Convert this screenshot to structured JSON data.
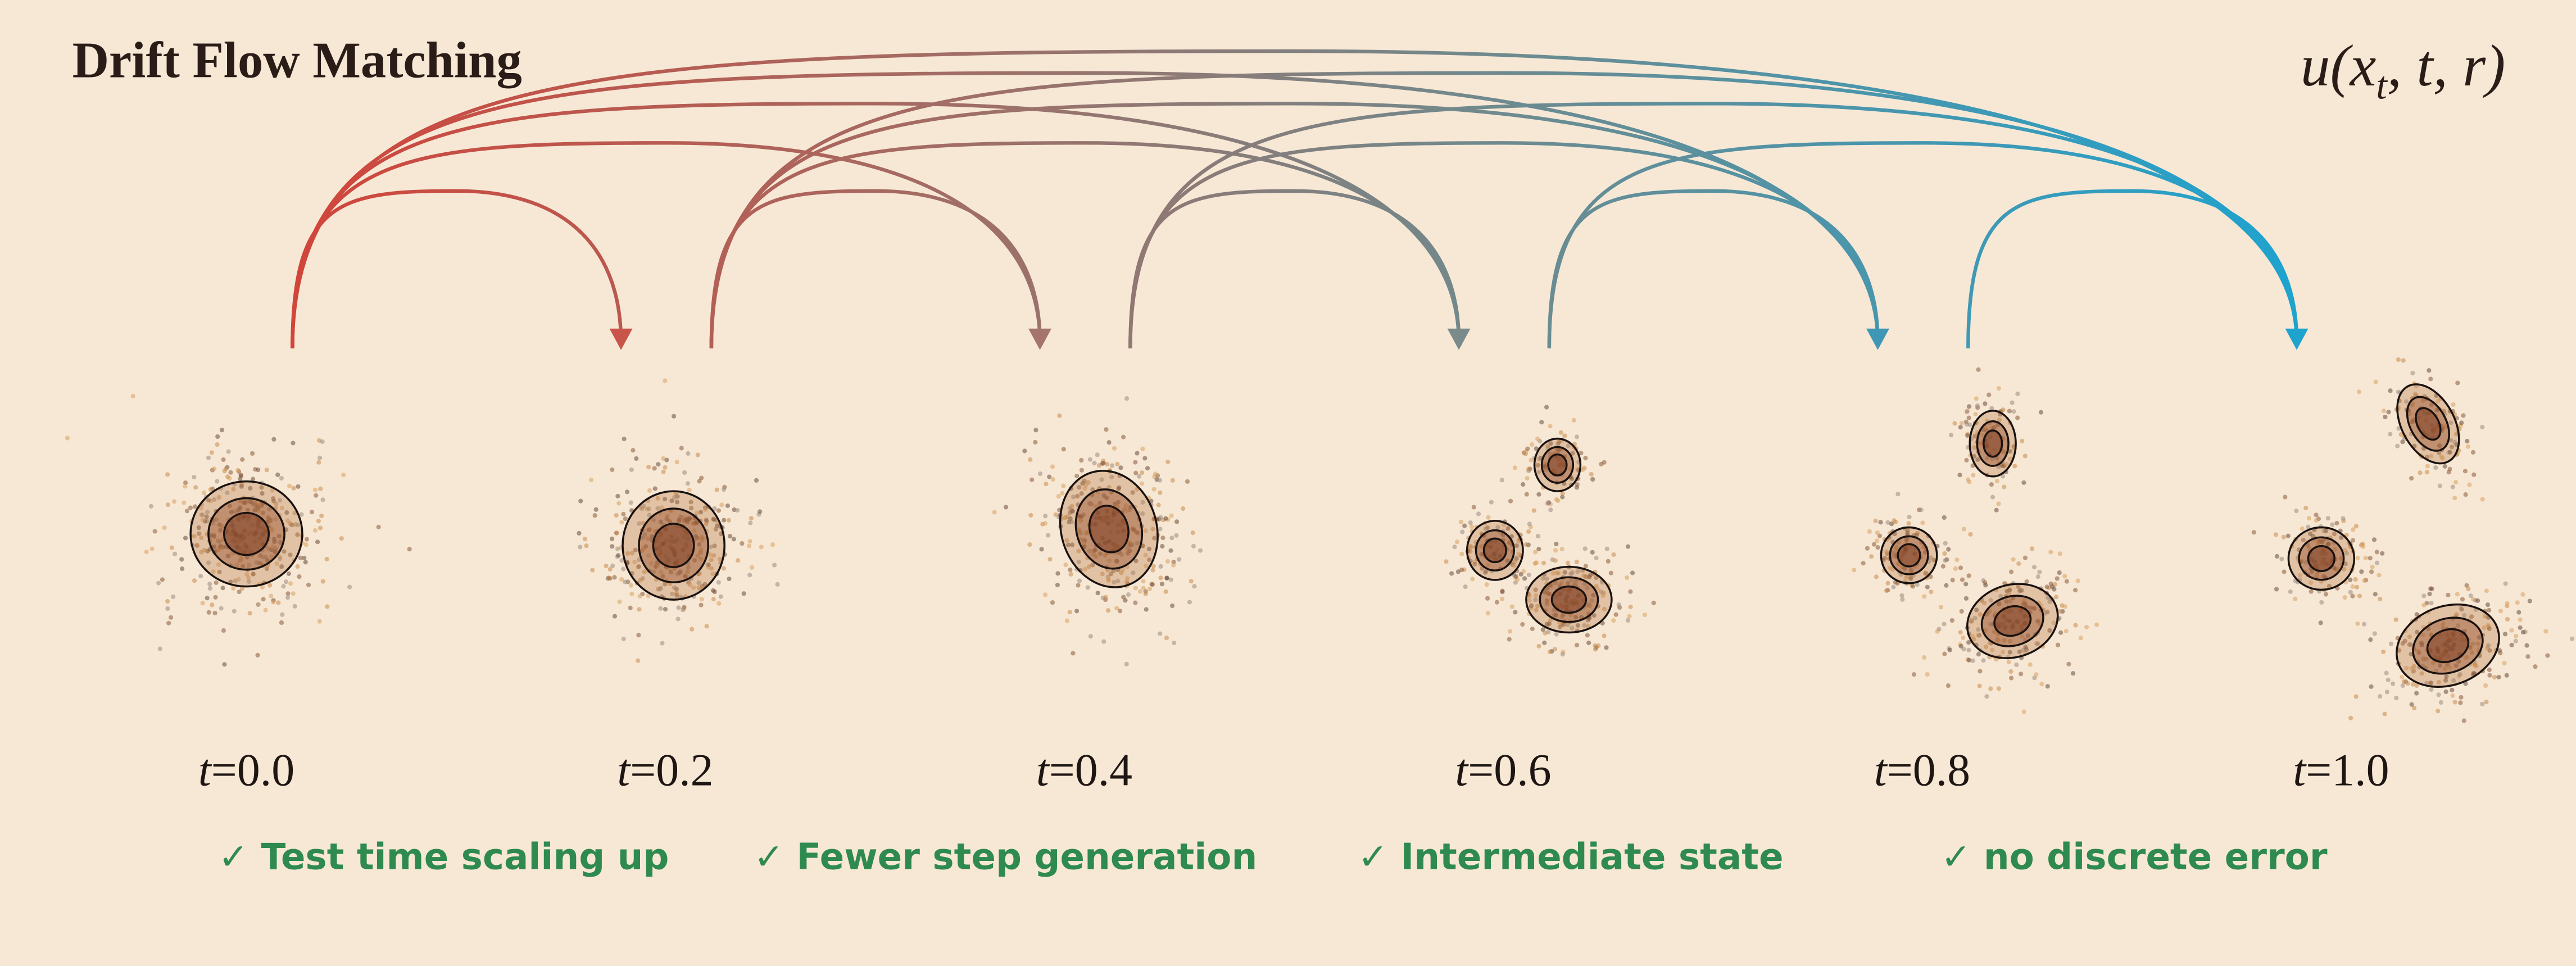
{
  "title": "Drift Flow Matching",
  "formula": {
    "head": "u(x",
    "sub": "t",
    "tail": ", t, r)"
  },
  "steps": [
    {
      "var": "t",
      "op": "=",
      "value": "0.0"
    },
    {
      "var": "t",
      "op": "=",
      "value": "0.2"
    },
    {
      "var": "t",
      "op": "=",
      "value": "0.4"
    },
    {
      "var": "t",
      "op": "=",
      "value": "0.6"
    },
    {
      "var": "t",
      "op": "=",
      "value": "0.8"
    },
    {
      "var": "t",
      "op": "=",
      "value": "1.0"
    }
  ],
  "features": [
    "✓ Test time scaling up",
    "✓ Fewer step generation",
    "✓ Intermediate state",
    "✓ no discrete error"
  ]
}
